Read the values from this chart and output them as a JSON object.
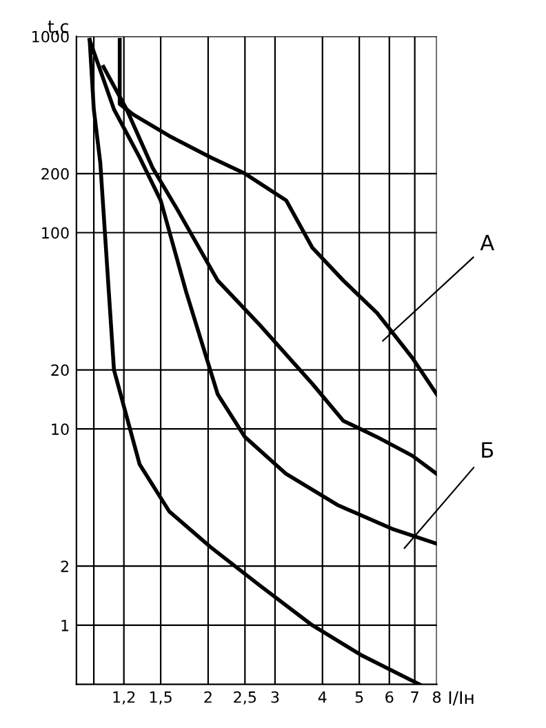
{
  "chart_data": {
    "type": "line",
    "xlabel": "I/Iн",
    "ylabel": "t,c",
    "log": "xy",
    "grid": true,
    "marker": "none",
    "line_style": "solid",
    "xlim": [
      0.9,
      8
    ],
    "ylim": [
      0.5,
      1000
    ],
    "xticks": [
      {
        "value": 1,
        "label": null
      },
      {
        "value": 1.2,
        "label": "1,2"
      },
      {
        "value": 1.5,
        "label": "1,5"
      },
      2,
      {
        "value": 2.5,
        "label": "2,5"
      },
      3,
      4,
      5,
      6,
      7,
      8
    ],
    "yticks": [
      1,
      2,
      10,
      20,
      100,
      200,
      1000
    ],
    "series": [
      {
        "color": "#000000",
        "x": [
          1.17,
          1.17,
          1.27,
          1.58,
          2.03,
          2.5,
          3.21,
          3.76,
          4.54,
          5.57,
          6.9,
          8
        ],
        "values": [
          960,
          453,
          400,
          311,
          242,
          200,
          146,
          84,
          57,
          39,
          23,
          15
        ]
      },
      {
        "color": "#000000",
        "x": [
          1.06,
          1.22,
          1.43,
          1.66,
          2.12,
          2.73,
          3.76,
          4.54,
          5.57,
          6.9,
          8
        ],
        "values": [
          700,
          425,
          213,
          131,
          57,
          34,
          17,
          11,
          9.1,
          7.3,
          5.9
        ]
      },
      {
        "color": "#000000",
        "x": [
          0.975,
          1.13,
          1.32,
          1.5,
          1.75,
          2.12,
          2.5,
          3.21,
          4.38,
          6.1,
          8
        ],
        "values": [
          960,
          425,
          242,
          146,
          50,
          15,
          9.1,
          5.9,
          4.1,
          3.1,
          2.6
        ]
      },
      {
        "color": "#000000",
        "x": [
          0.975,
          1.0,
          1.04,
          1.13,
          1.32,
          1.58,
          2.03,
          2.73,
          3.76,
          5.09,
          7.2
        ],
        "values": [
          960,
          425,
          227,
          20,
          6.6,
          3.8,
          2.5,
          1.6,
          1.0,
          0.7,
          0.5
        ]
      }
    ],
    "annotations": [
      "А",
      "Б"
    ]
  }
}
